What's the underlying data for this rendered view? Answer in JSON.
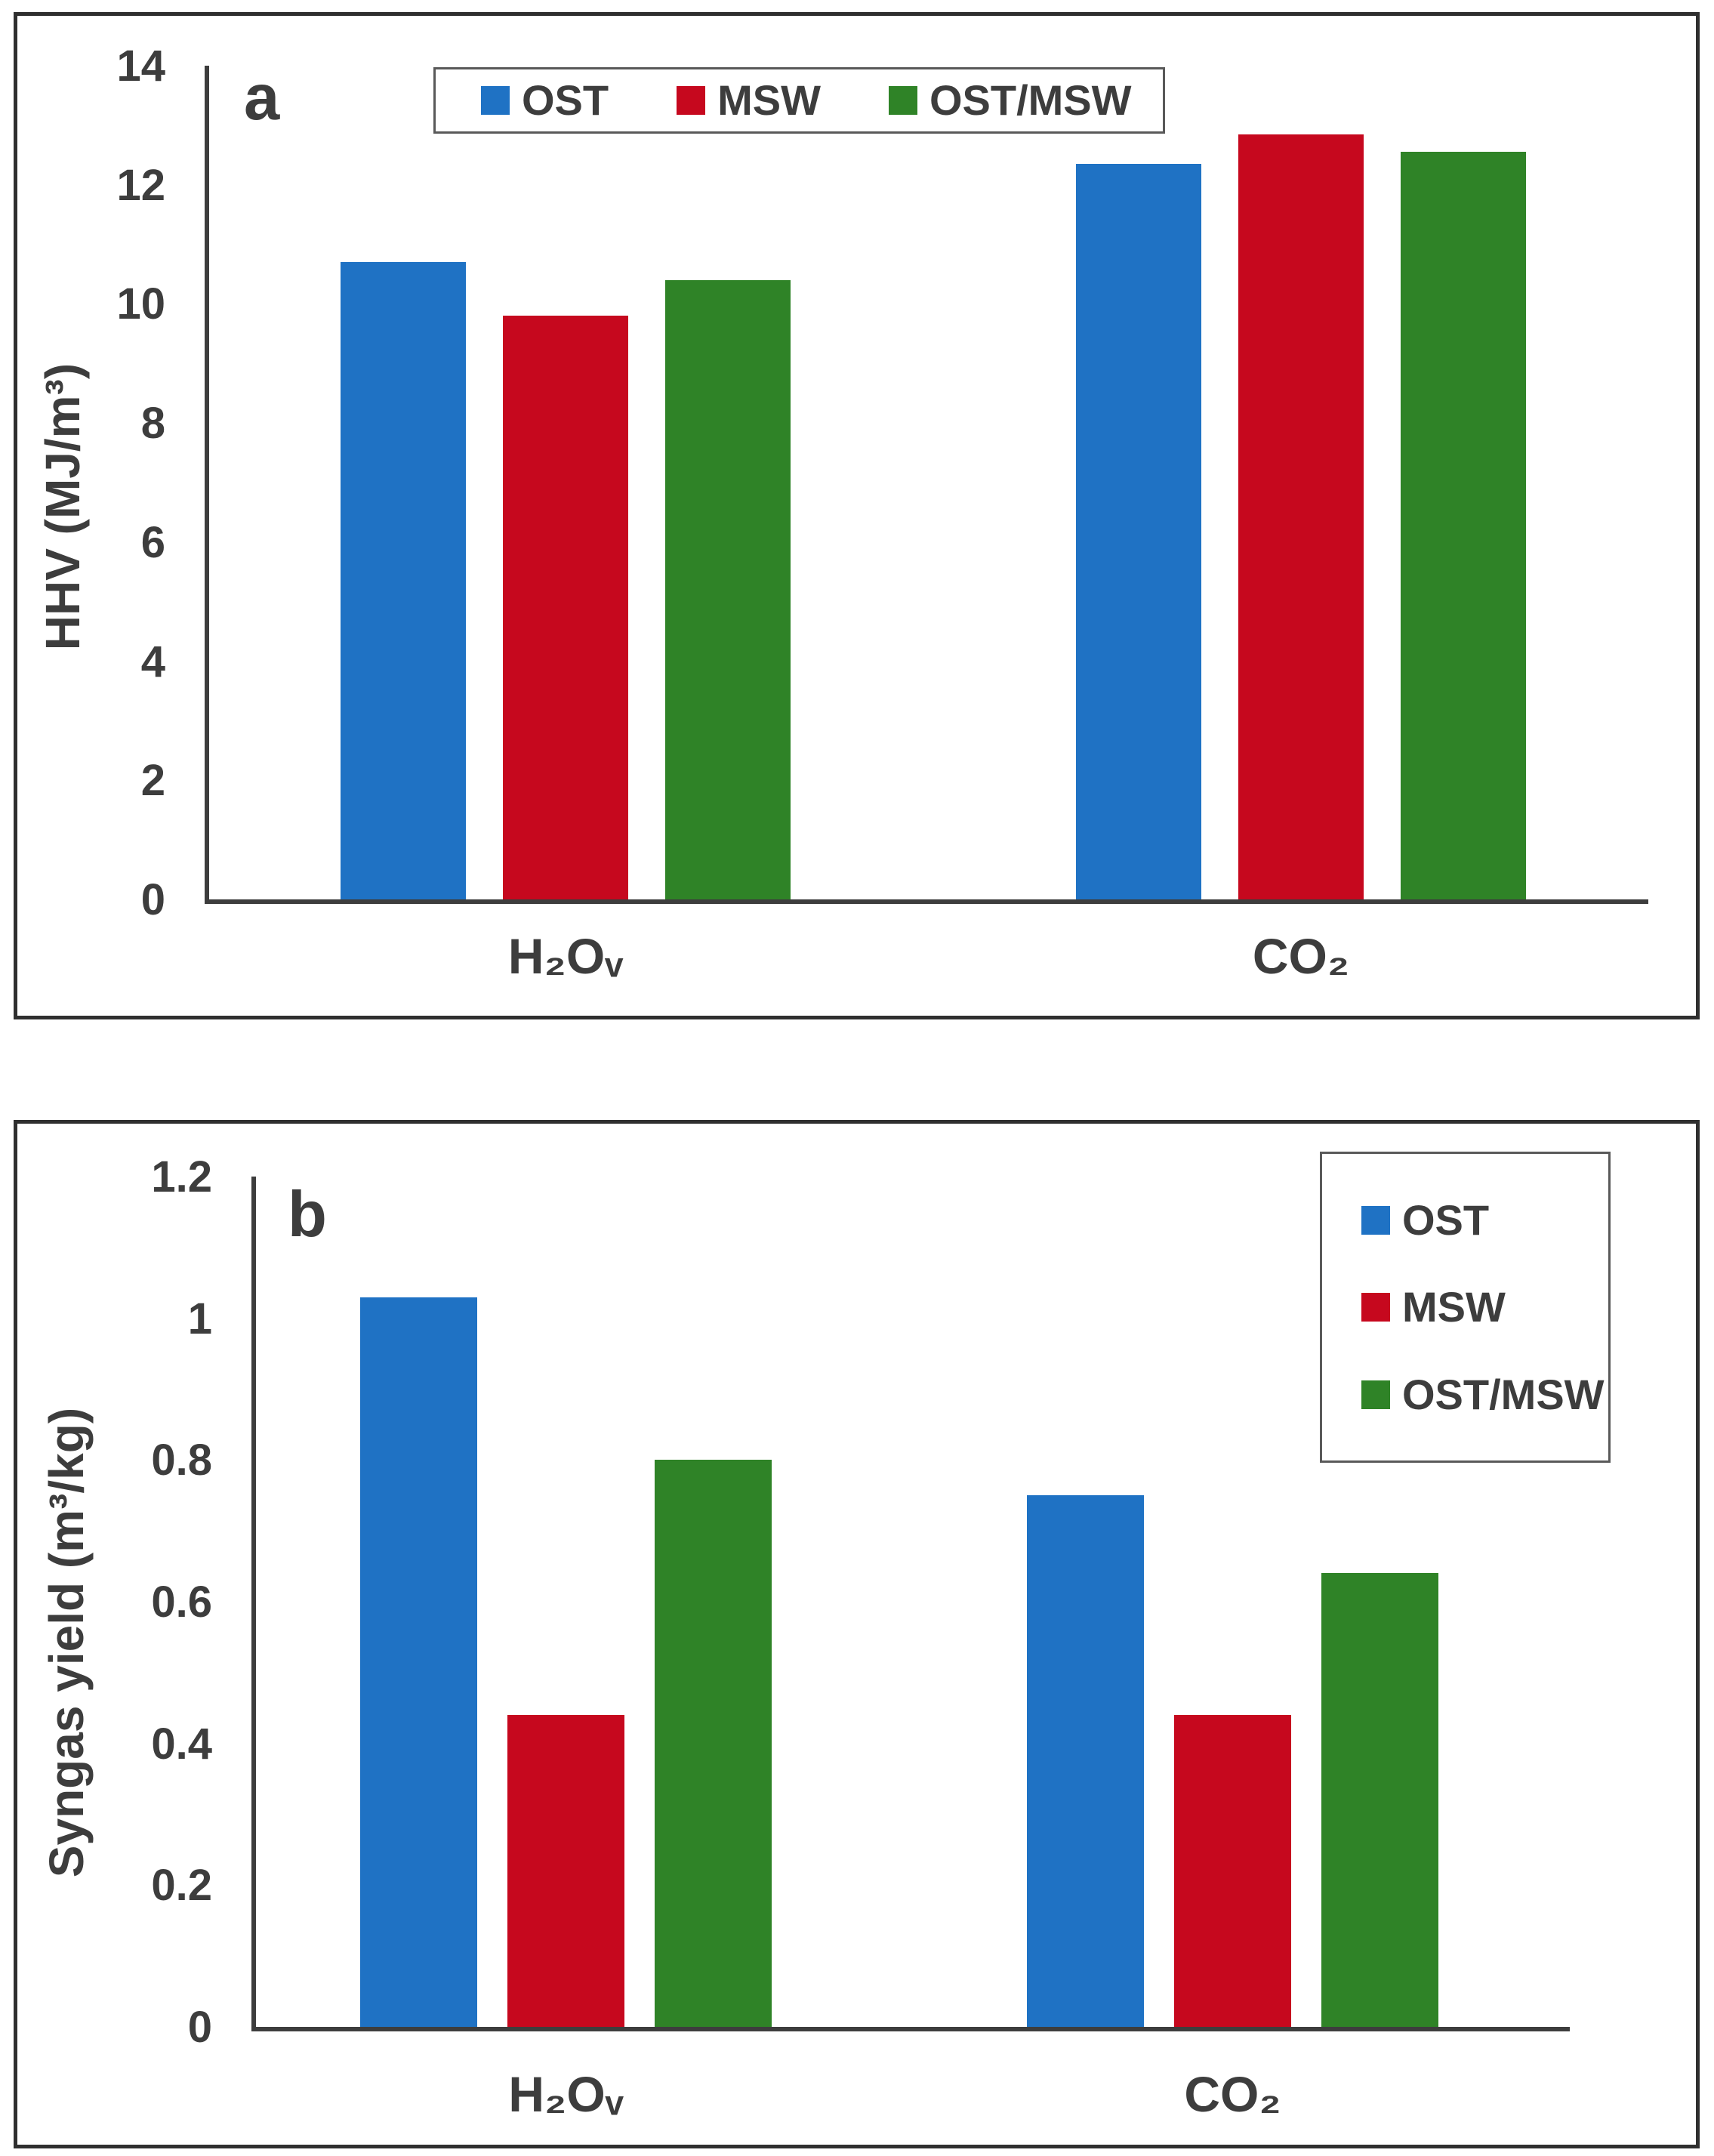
{
  "colors": {
    "text": "#3d3d3d",
    "axis": "#3d3d3d",
    "panel_border": "#2f2f2f",
    "legend_border": "#595959",
    "background": "#ffffff"
  },
  "chart_data": [
    {
      "type": "bar",
      "panel_label": "a",
      "title": "",
      "ylabel": "HHV (MJ/m³)",
      "xlabel": "",
      "categories": [
        "H₂Oᵥ",
        "CO₂"
      ],
      "series": [
        {
          "name": "OST",
          "color": "#1f72c4",
          "values": [
            10.7,
            12.35
          ]
        },
        {
          "name": "MSW",
          "color": "#c6081e",
          "values": [
            9.8,
            12.85
          ]
        },
        {
          "name": "OST/MSW",
          "color": "#2f8327",
          "values": [
            10.4,
            12.55
          ]
        }
      ],
      "ylim": [
        0,
        14
      ],
      "yticks": [
        0,
        2,
        4,
        6,
        8,
        10,
        12,
        14
      ],
      "legend_position": "top-center-horizontal",
      "grid": false
    },
    {
      "type": "bar",
      "panel_label": "b",
      "title": "",
      "ylabel": "Syngas yield (m³/kg)",
      "xlabel": "",
      "categories": [
        "H₂Oᵥ",
        "CO₂"
      ],
      "series": [
        {
          "name": "OST",
          "color": "#1f72c4",
          "values": [
            1.03,
            0.75
          ]
        },
        {
          "name": "MSW",
          "color": "#c6081e",
          "values": [
            0.44,
            0.44
          ]
        },
        {
          "name": "OST/MSW",
          "color": "#2f8327",
          "values": [
            0.8,
            0.64
          ]
        }
      ],
      "ylim": [
        0,
        1.2
      ],
      "yticks": [
        0,
        0.2,
        0.4,
        0.6,
        0.8,
        1,
        1.2
      ],
      "legend_position": "top-right-vertical",
      "grid": false
    }
  ]
}
